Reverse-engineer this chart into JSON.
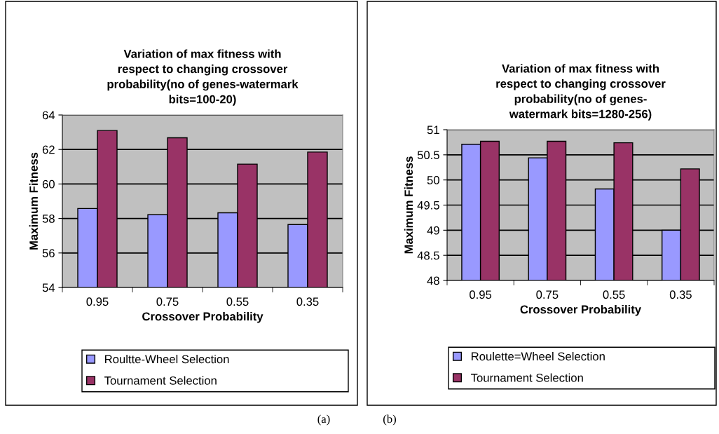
{
  "chart_data": [
    {
      "type": "bar",
      "title": "Variation of max fitness with\nrespect to changing crossover\nprobability(no of genes-watermark\nbits=100-20)",
      "xlabel": "Crossover Probability",
      "ylabel": "Maximum Fitness",
      "categories": [
        "0.95",
        "0.75",
        "0.55",
        "0.35"
      ],
      "series": [
        {
          "name": "Roultte-Wheel Selection",
          "color": "#9999ff",
          "values": [
            58.58,
            58.22,
            58.33,
            57.65
          ]
        },
        {
          "name": "Tournament Selection",
          "color": "#993366",
          "values": [
            63.1,
            62.68,
            61.15,
            61.85
          ]
        }
      ],
      "ylim": [
        54,
        64
      ],
      "yticks": [
        54,
        56,
        58,
        60,
        62,
        64
      ],
      "grid": "y",
      "legend": "bottom",
      "annotations": [
        "(a)"
      ]
    },
    {
      "type": "bar",
      "title": "Variation of max fitness with\nrespect to changing crossover\nprobability(no of genes-\nwatermark bits=1280-256)",
      "xlabel": "Crossover Probability",
      "ylabel": "Maximum Fitness",
      "categories": [
        "0.95",
        "0.75",
        "0.55",
        "0.35"
      ],
      "series": [
        {
          "name": "Roulette=Wheel Selection",
          "color": "#9999ff",
          "values": [
            50.71,
            50.44,
            49.82,
            49.0
          ]
        },
        {
          "name": "Tournament Selection",
          "color": "#993366",
          "values": [
            50.77,
            50.77,
            50.74,
            50.22
          ]
        }
      ],
      "ylim": [
        48,
        51
      ],
      "yticks": [
        48,
        48.5,
        49,
        49.5,
        50,
        50.5,
        51
      ],
      "grid": "y",
      "legend": "bottom",
      "annotations": [
        "(b)"
      ]
    }
  ]
}
